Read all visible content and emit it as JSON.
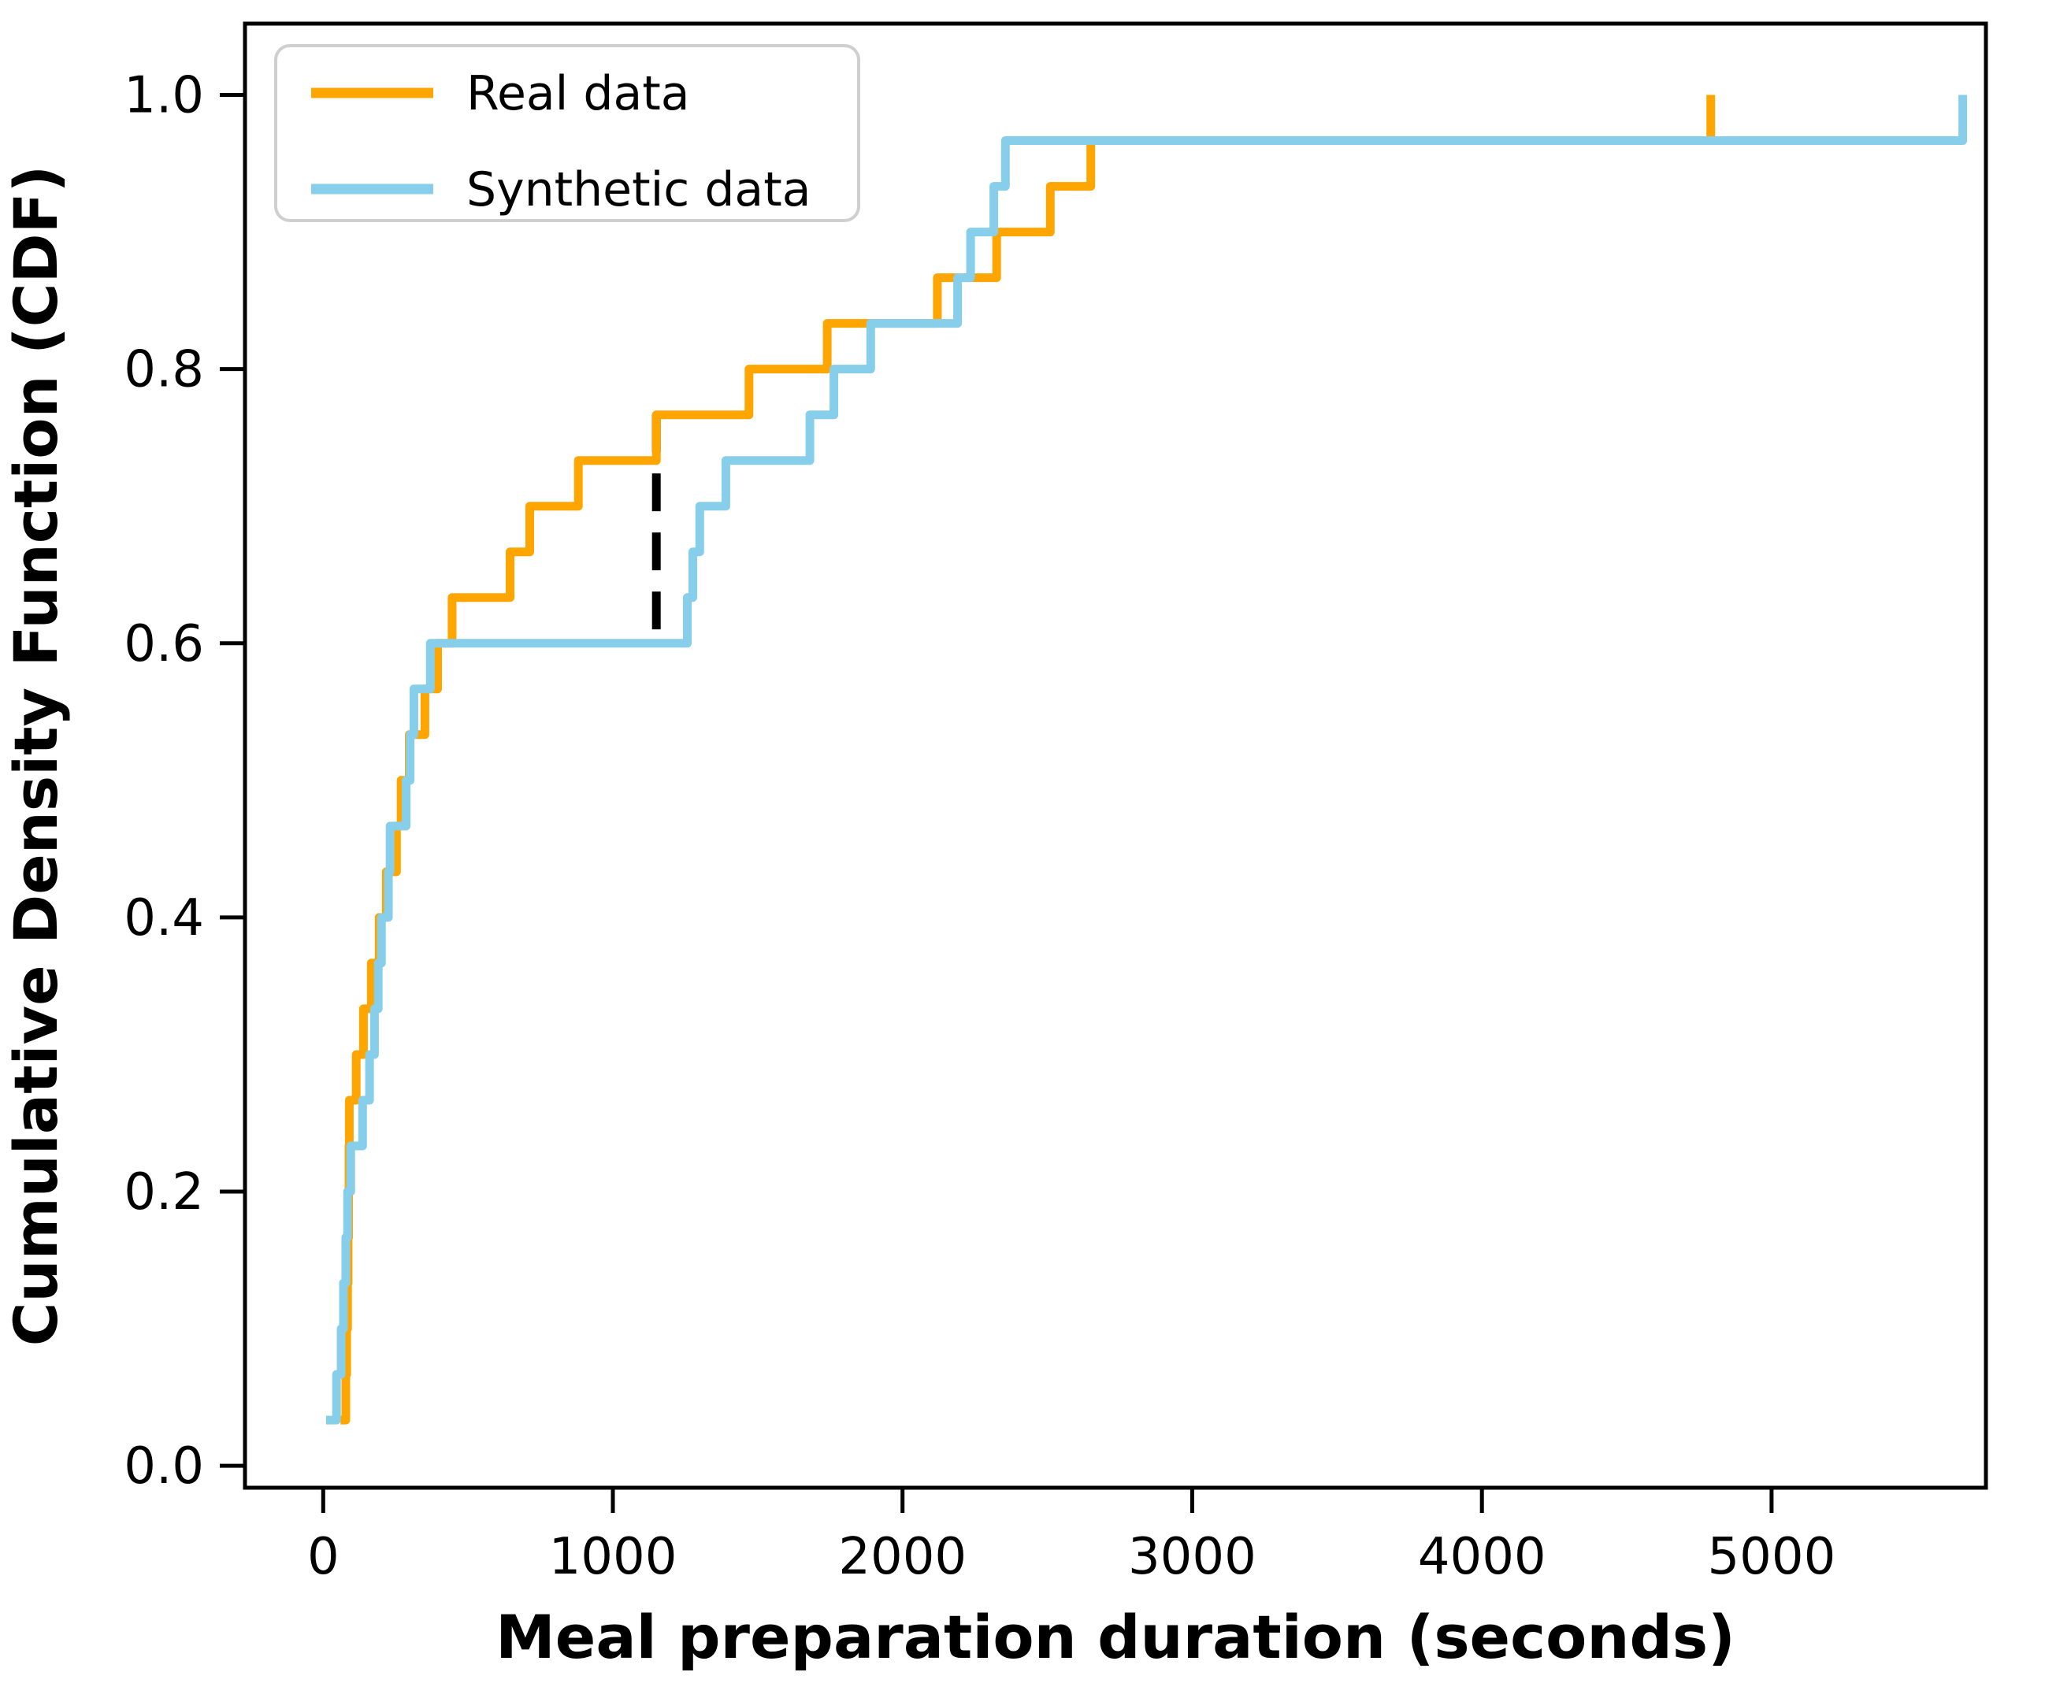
{
  "page": {
    "background": "#ffffff"
  },
  "chart_data": {
    "type": "line",
    "subtype": "ecdf_step",
    "title": "",
    "xlabel": "Meal preparation duration (seconds)",
    "ylabel": "Cumulative Density Function (CDF)",
    "xlim": [
      -270,
      5740
    ],
    "ylim": [
      -0.016,
      1.052
    ],
    "x_tick_labels": [
      "0",
      "1000",
      "2000",
      "3000",
      "4000",
      "5000"
    ],
    "x_tick_values": [
      0,
      1000,
      2000,
      3000,
      4000,
      5000
    ],
    "y_tick_labels": [
      "0.0",
      "0.2",
      "0.4",
      "0.6",
      "0.8",
      "1.0"
    ],
    "y_tick_values": [
      0,
      0.2,
      0.4,
      0.6,
      0.8,
      1.0
    ],
    "grid": false,
    "legend_position": "upper-left",
    "n_points_per_series": 30,
    "cdf_step": 0.0333,
    "series": [
      {
        "name": "Real data",
        "color": "#FFA500",
        "values": [
          60,
          78,
          81,
          84,
          86,
          88,
          89,
          90,
          114,
          139,
          166,
          193,
          218,
          253,
          269,
          297,
          351,
          395,
          445,
          645,
          713,
          881,
          1150,
          1470,
          1740,
          2120,
          2325,
          2510,
          2650,
          4790
        ]
      },
      {
        "name": "Synthetic data",
        "color": "#87CEEB",
        "values": [
          10,
          46,
          62,
          70,
          78,
          84,
          95,
          136,
          160,
          177,
          190,
          201,
          225,
          231,
          286,
          300,
          313,
          370,
          1257,
          1276,
          1300,
          1390,
          1680,
          1763,
          1890,
          2190,
          2235,
          2315,
          2355,
          5660
        ]
      }
    ],
    "annotation": {
      "name": "ks-max-distance-line",
      "style": "dashed",
      "color": "#000000",
      "x": 1150,
      "y_from": 0.6,
      "y_to": 0.767
    }
  }
}
